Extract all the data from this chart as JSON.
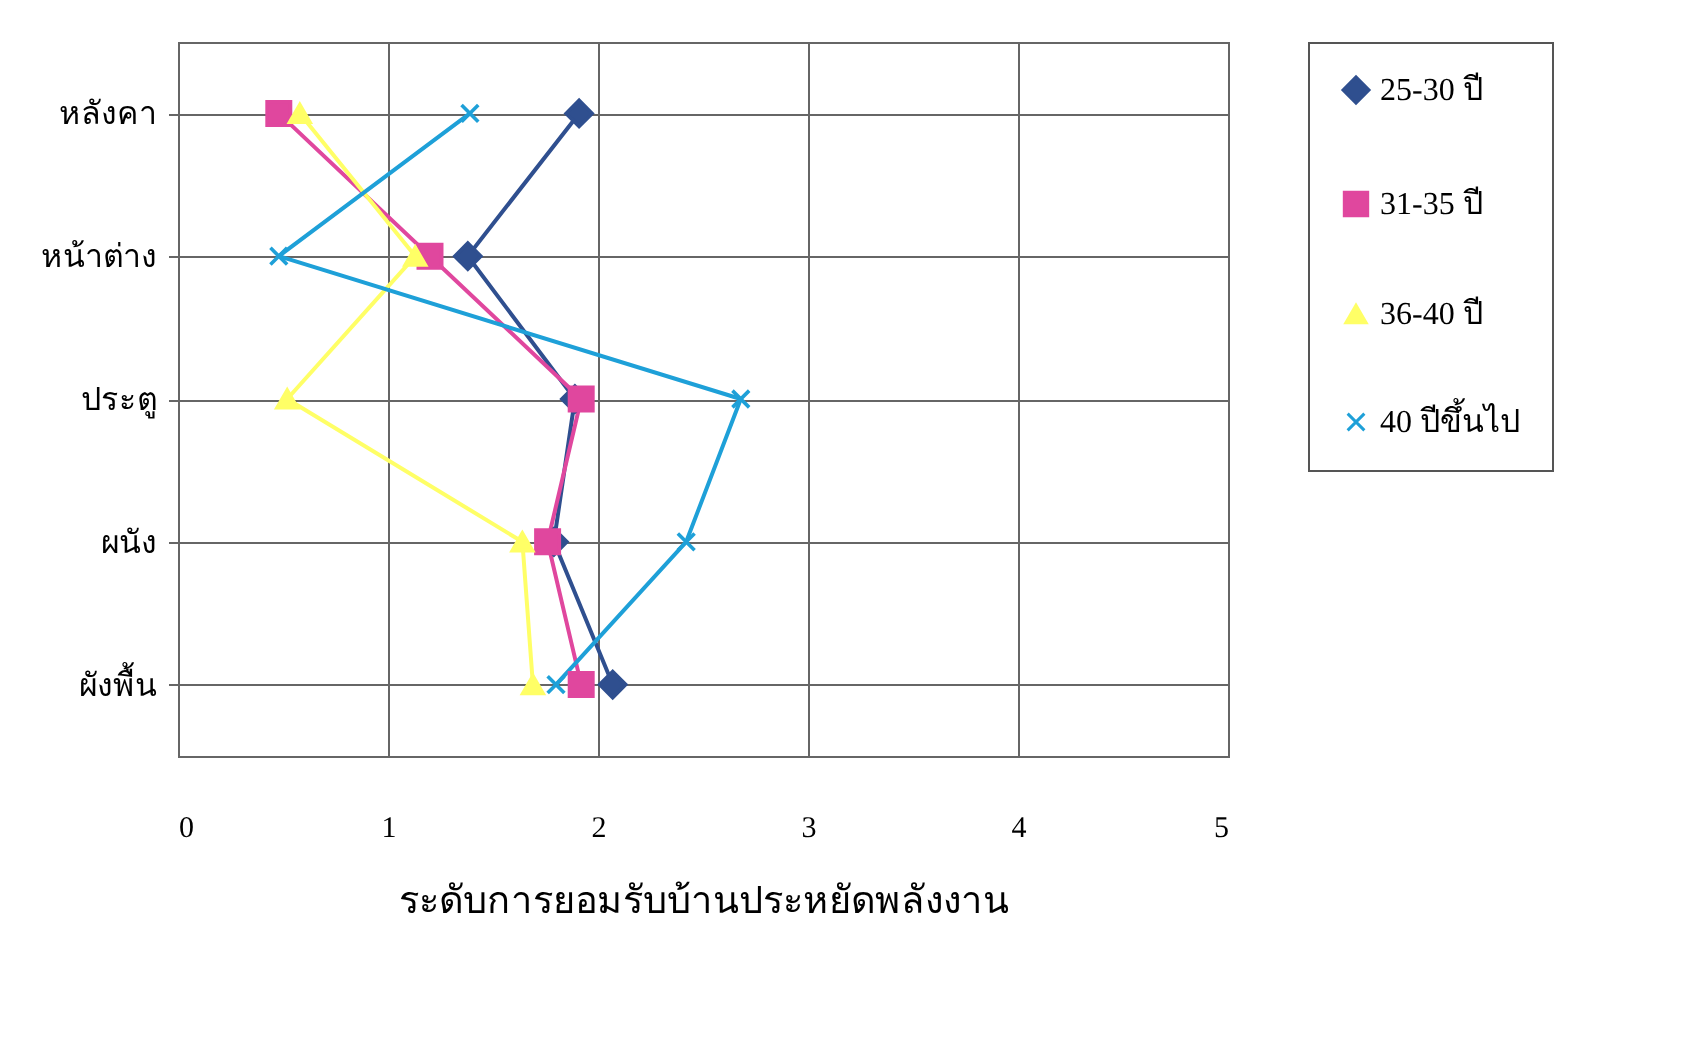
{
  "chart_data": {
    "type": "line",
    "orientation": "horizontal",
    "xlabel": "ระดับการยอมรับบ้านประหยัดพลังงาน",
    "categories": [
      "หลังคา",
      "หน้าต่าง",
      "ประตู",
      "ผนัง",
      "ผังพื้น"
    ],
    "xlim": [
      0,
      5
    ],
    "xticks": [
      0,
      1,
      2,
      3,
      4,
      5
    ],
    "grid": true,
    "legend": "right",
    "series": [
      {
        "name": "25-30 ปี",
        "color": "#2f4f8f",
        "marker": "diamond",
        "values": [
          1.91,
          1.38,
          1.89,
          1.79,
          2.07
        ]
      },
      {
        "name": "31-35 ปี",
        "color": "#e0479e",
        "marker": "square",
        "values": [
          0.48,
          1.2,
          1.92,
          1.76,
          1.92
        ]
      },
      {
        "name": "36-40 ปี",
        "color": "#ffff66",
        "marker": "triangle",
        "values": [
          0.58,
          1.13,
          0.52,
          1.64,
          1.69
        ]
      },
      {
        "name": "40 ปีขึ้นไป",
        "color": "#1ea0d8",
        "marker": "cross",
        "values": [
          1.39,
          0.48,
          2.68,
          2.42,
          1.8
        ]
      }
    ]
  }
}
